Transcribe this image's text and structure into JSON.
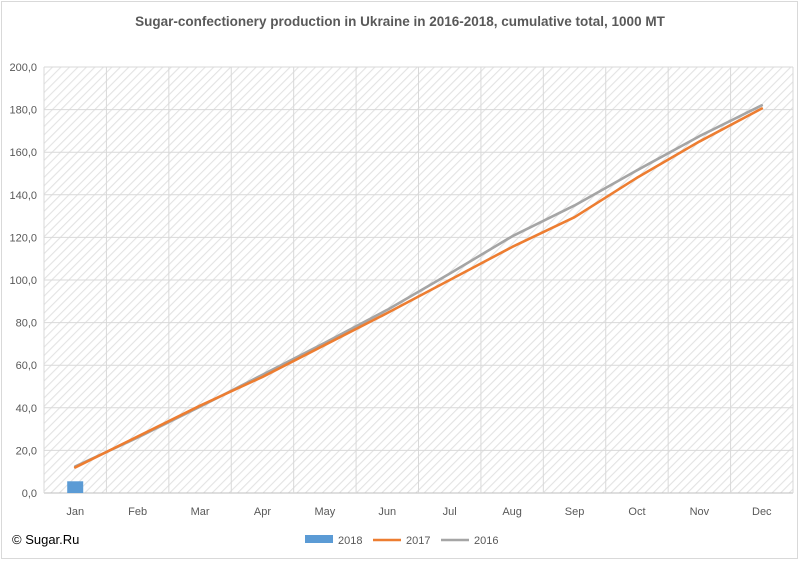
{
  "chart_data": {
    "type": "line",
    "title": "Sugar-confectionery production in Ukraine in 2016-2018, cumulative total, 1000 MT",
    "categories": [
      "Jan",
      "Feb",
      "Mar",
      "Apr",
      "May",
      "Jun",
      "Jul",
      "Aug",
      "Sep",
      "Oct",
      "Nov",
      "Dec"
    ],
    "ylim": [
      0,
      200
    ],
    "yticks": [
      "0,0",
      "20,0",
      "40,0",
      "60,0",
      "80,0",
      "100,0",
      "120,0",
      "140,0",
      "160,0",
      "180,0",
      "200,0"
    ],
    "grid": true,
    "legend_position": "bottom",
    "series": [
      {
        "name": "2018",
        "kind": "bar",
        "color": "#5b9bd5",
        "values": [
          5.5,
          null,
          null,
          null,
          null,
          null,
          null,
          null,
          null,
          null,
          null,
          null
        ]
      },
      {
        "name": "2017",
        "kind": "line",
        "color": "#ed7d31",
        "values": [
          12.0,
          26.5,
          41.0,
          54.5,
          69.5,
          84.5,
          100.0,
          115.5,
          129.5,
          148.0,
          165.0,
          180.5
        ]
      },
      {
        "name": "2016",
        "kind": "line",
        "color": "#a5a5a5",
        "values": [
          12.5,
          26.0,
          40.5,
          55.5,
          70.5,
          86.0,
          103.0,
          120.5,
          135.0,
          151.5,
          167.5,
          182.0
        ]
      }
    ]
  },
  "watermark": "© Sugar.Ru"
}
